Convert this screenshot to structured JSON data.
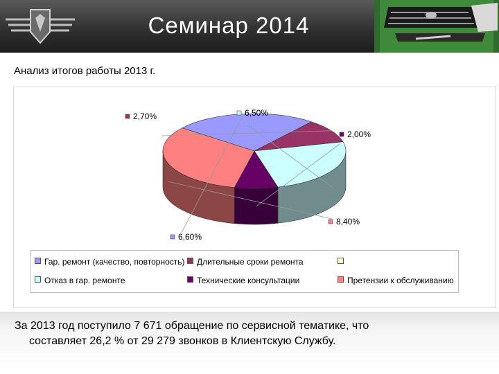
{
  "header": {
    "title": "Семинар 2014"
  },
  "subtitle": "Анализ итогов работы 2013 г.",
  "chart_data": {
    "type": "pie",
    "values": [
      6.6,
      2.7,
      6.5,
      2.0,
      8.4
    ],
    "labels": [
      "6,60%",
      "2,70%",
      "6,50%",
      "2,00%",
      "8,40%"
    ],
    "categories": [
      "Гар. ремонт (качество, повторность)",
      "Длительные сроки ремонта",
      "",
      "Отказ в гар. ремонте",
      "Технические консультации",
      "Претензии к обслуживанию"
    ],
    "colors": [
      "#9999ff",
      "#993366",
      "#ccffff",
      "#660066",
      "#ff8080"
    ],
    "legend_colors": [
      "#9999ff",
      "#993366",
      "#ffffcc",
      "#ccffff",
      "#660066",
      "#ff8080"
    ],
    "legend_position": "bottom"
  },
  "note": {
    "line1": "За 2013 год поступило 7 671 обращение по сервисной тематике, что",
    "line2": "составляет 26,2 %  от 29 279 звонков в Клиентскую Службу."
  }
}
